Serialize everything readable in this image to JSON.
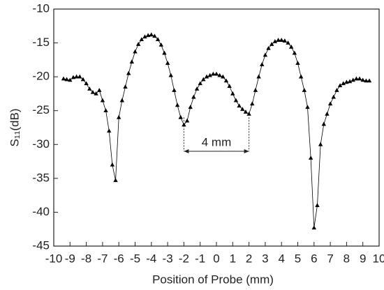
{
  "chart_data": {
    "type": "line",
    "xlabel": "Position of Probe (mm)",
    "ylabel": "S₁₁(dB)",
    "x": [
      -9.4,
      -9.2,
      -9.0,
      -8.8,
      -8.6,
      -8.4,
      -8.2,
      -8.0,
      -7.8,
      -7.6,
      -7.4,
      -7.2,
      -7.0,
      -6.8,
      -6.6,
      -6.4,
      -6.2,
      -6.0,
      -5.8,
      -5.6,
      -5.4,
      -5.2,
      -5.0,
      -4.8,
      -4.6,
      -4.4,
      -4.2,
      -4.0,
      -3.8,
      -3.6,
      -3.4,
      -3.2,
      -3.0,
      -2.8,
      -2.6,
      -2.4,
      -2.2,
      -2.0,
      -1.8,
      -1.6,
      -1.4,
      -1.2,
      -1.0,
      -0.8,
      -0.6,
      -0.4,
      -0.2,
      0,
      0.2,
      0.4,
      0.6,
      0.8,
      1.0,
      1.2,
      1.4,
      1.6,
      1.8,
      2.0,
      2.2,
      2.4,
      2.6,
      2.8,
      3.0,
      3.2,
      3.4,
      3.6,
      3.8,
      4.0,
      4.2,
      4.4,
      4.6,
      4.8,
      5.0,
      5.2,
      5.4,
      5.6,
      5.8,
      6.0,
      6.2,
      6.4,
      6.6,
      6.8,
      7.0,
      7.2,
      7.4,
      7.6,
      7.8,
      8.0,
      8.2,
      8.4,
      8.6,
      8.8,
      9.0,
      9.2,
      9.4
    ],
    "series": [
      {
        "color": "#000000",
        "values": [
          -20.3,
          -20.4,
          -20.5,
          -20.1,
          -20.0,
          -20.0,
          -20.4,
          -21.0,
          -21.8,
          -22.3,
          -22.5,
          -22.0,
          -23.5,
          -25.0,
          -28.0,
          -33.0,
          -35.3,
          -26.0,
          -23.5,
          -21.5,
          -19.5,
          -17.8,
          -16.3,
          -15.2,
          -14.5,
          -14.1,
          -13.9,
          -13.8,
          -14.0,
          -14.5,
          -15.3,
          -16.5,
          -18.0,
          -19.8,
          -22.0,
          -24.2,
          -26.0,
          -27.1,
          -26.5,
          -24.5,
          -23.0,
          -21.8,
          -21.0,
          -20.4,
          -20.0,
          -19.8,
          -19.6,
          -19.6,
          -19.8,
          -20.0,
          -20.6,
          -21.4,
          -22.5,
          -23.5,
          -24.3,
          -24.8,
          -25.2,
          -25.5,
          -24.0,
          -22.0,
          -20.0,
          -18.2,
          -16.8,
          -15.8,
          -15.2,
          -14.8,
          -14.6,
          -14.6,
          -14.7,
          -15.0,
          -15.6,
          -16.5,
          -18.0,
          -20.0,
          -22.0,
          -24.5,
          -32.0,
          -42.3,
          -39.0,
          -30.0,
          -27.0,
          -25.5,
          -24.0,
          -23.0,
          -22.0,
          -21.3,
          -21.0,
          -20.8,
          -20.7,
          -20.5,
          -20.3,
          -20.3,
          -20.5,
          -20.6,
          -20.6
        ]
      }
    ],
    "xlim": [
      -10,
      10
    ],
    "ylim": [
      -45,
      -10
    ],
    "xticks": [
      -10,
      -9,
      -8,
      -7,
      -6,
      -5,
      -4,
      -3,
      -2,
      -1,
      0,
      1,
      2,
      3,
      4,
      5,
      6,
      7,
      8,
      9,
      10
    ],
    "yticks": [
      -45,
      -40,
      -35,
      -30,
      -25,
      -20,
      -15,
      -10
    ],
    "annotation": {
      "text": "4 mm",
      "x": [
        -2,
        2
      ],
      "y": -31,
      "y_top": -26
    }
  }
}
